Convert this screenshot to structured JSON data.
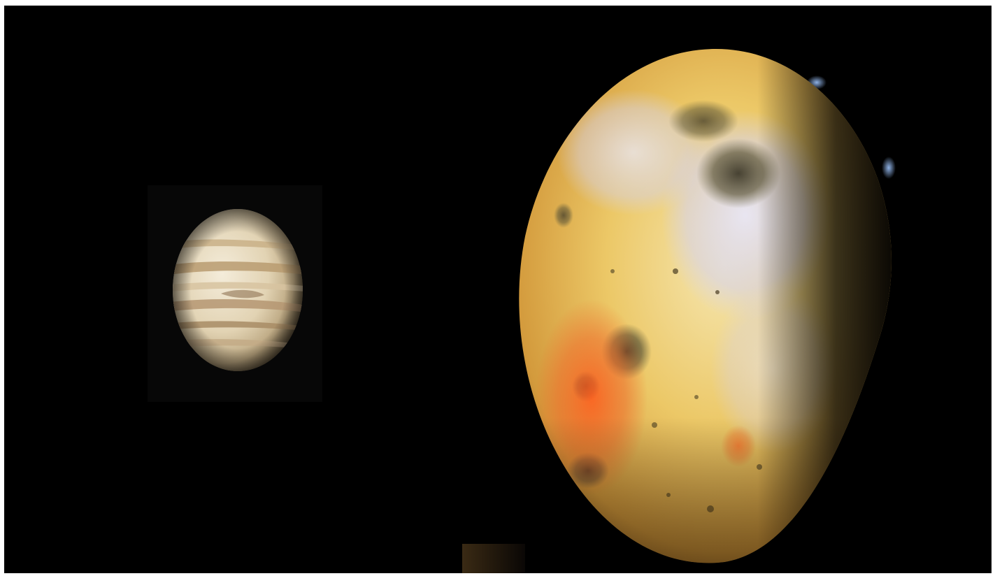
{
  "scene": {
    "background_color": "#000000",
    "objects": [
      {
        "name": "jupiter",
        "colors": [
          "#efe6d2",
          "#cdb48a",
          "#a88a62"
        ]
      },
      {
        "name": "io",
        "colors": [
          "#f2d36b",
          "#e8632a",
          "#d8d6ec",
          "#5a5236"
        ]
      }
    ]
  }
}
